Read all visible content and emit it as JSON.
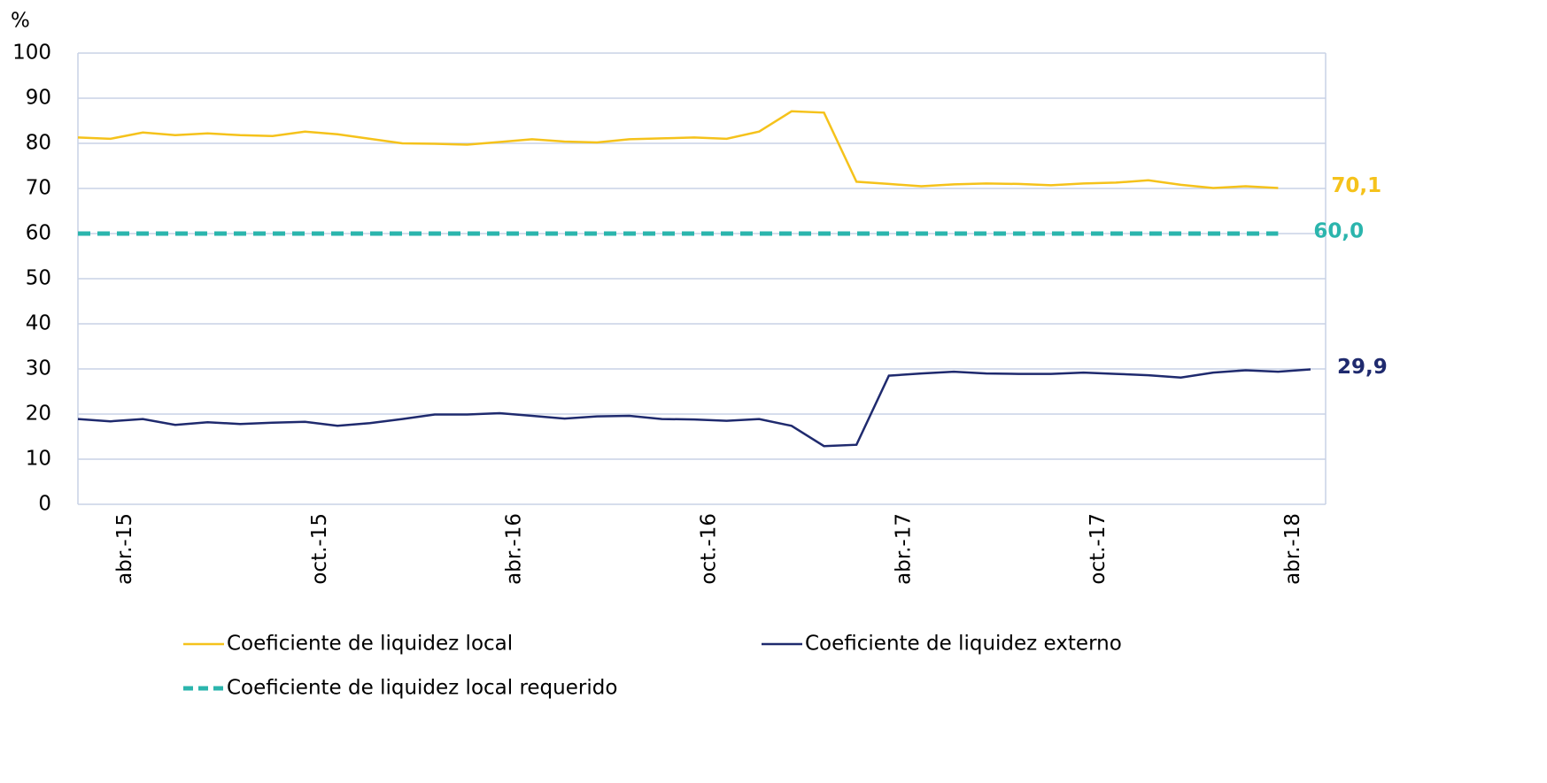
{
  "chart_data": {
    "type": "line",
    "y_label": "%",
    "categories": [
      null,
      "abr.-15",
      null,
      null,
      null,
      null,
      null,
      "oct.-15",
      null,
      null,
      null,
      null,
      null,
      "abr.-16",
      null,
      null,
      null,
      null,
      null,
      "oct.-16",
      null,
      null,
      null,
      null,
      null,
      "abr.-17",
      null,
      null,
      null,
      null,
      null,
      "oct.-17",
      null,
      null,
      null,
      null,
      null,
      "abr.-18",
      null
    ],
    "series": [
      {
        "name": "Coeficiente de liquidez local",
        "color": "#f5c21b",
        "style": "solid",
        "values": [
          81.3,
          81.0,
          82.4,
          81.8,
          82.2,
          81.8,
          81.6,
          82.6,
          82.0,
          81.0,
          80.0,
          79.9,
          79.7,
          80.3,
          80.9,
          80.4,
          80.2,
          80.9,
          81.1,
          81.3,
          81.0,
          82.6,
          87.1,
          86.8,
          71.5,
          71.0,
          70.5,
          70.9,
          71.1,
          71.0,
          70.7,
          71.1,
          71.3,
          71.8,
          70.8,
          70.1,
          70.5,
          70.1,
          null
        ],
        "value_labels": [
          null,
          null,
          null,
          null,
          null,
          null,
          null,
          null,
          null,
          null,
          null,
          null,
          null,
          null,
          null,
          null,
          null,
          null,
          null,
          null,
          null,
          null,
          null,
          null,
          null,
          null,
          null,
          null,
          null,
          null,
          null,
          null,
          null,
          null,
          null,
          null,
          null,
          "70,1",
          null
        ]
      },
      {
        "name": "Coeficiente de liquidez externo",
        "color": "#1f2a6e",
        "style": "solid",
        "values": [
          18.9,
          18.4,
          18.9,
          17.6,
          18.2,
          17.8,
          18.1,
          18.3,
          17.4,
          18.0,
          18.9,
          19.9,
          19.9,
          20.2,
          19.6,
          19.0,
          19.5,
          19.6,
          18.9,
          18.8,
          18.5,
          18.9,
          17.4,
          12.9,
          13.2,
          28.5,
          29.0,
          29.4,
          29.0,
          28.9,
          28.9,
          29.2,
          28.9,
          28.6,
          28.1,
          29.2,
          29.7,
          29.4,
          29.9
        ],
        "value_labels": [
          null,
          null,
          null,
          null,
          null,
          null,
          null,
          null,
          null,
          null,
          null,
          null,
          null,
          null,
          null,
          null,
          null,
          null,
          null,
          null,
          null,
          null,
          null,
          null,
          null,
          null,
          null,
          null,
          null,
          null,
          null,
          null,
          null,
          null,
          null,
          null,
          null,
          null,
          "29,9"
        ]
      },
      {
        "name": "Coeficiente de liquidez local requerido",
        "color": "#2bb5ad",
        "style": "dashed",
        "values": [
          60,
          60,
          60,
          60,
          60,
          60,
          60,
          60,
          60,
          60,
          60,
          60,
          60,
          60,
          60,
          60,
          60,
          60,
          60,
          60,
          60,
          60,
          60,
          60,
          60,
          60,
          60,
          60,
          60,
          60,
          60,
          60,
          60,
          60,
          60,
          60,
          60,
          60,
          null
        ],
        "value_labels": [
          null,
          null,
          null,
          null,
          null,
          null,
          null,
          null,
          null,
          null,
          null,
          null,
          null,
          null,
          null,
          null,
          null,
          null,
          null,
          null,
          null,
          null,
          null,
          null,
          null,
          null,
          null,
          null,
          null,
          null,
          null,
          null,
          null,
          null,
          null,
          null,
          null,
          "60,0",
          null
        ]
      }
    ],
    "ylim": [
      0,
      100
    ],
    "yticks": [
      0,
      10,
      20,
      30,
      40,
      50,
      60,
      70,
      80,
      90,
      100
    ],
    "grid": true
  }
}
